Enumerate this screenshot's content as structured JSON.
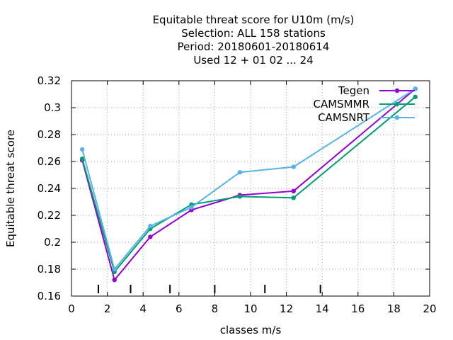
{
  "chart_data": {
    "type": "line",
    "title_lines": [
      "Equitable threat score  for U10m (m/s)",
      "Selection: ALL    158 stations",
      "Period: 20180601-20180614",
      "Used  12 + 01 02 ... 24"
    ],
    "xlabel": "classes m/s",
    "ylabel": "Equitable threat score",
    "xlim": [
      0,
      20
    ],
    "ylim": [
      0.16,
      0.32
    ],
    "x_ticks": [
      0,
      2,
      4,
      6,
      8,
      10,
      12,
      14,
      16,
      18,
      20
    ],
    "y_ticks": [
      0.16,
      0.18,
      0.2,
      0.22,
      0.24,
      0.26,
      0.28,
      0.3,
      0.32
    ],
    "y_tick_labels": [
      "0.16",
      "0.18",
      "0.2",
      "0.22",
      "0.24",
      "0.26",
      "0.28",
      "0.3",
      "0.32"
    ],
    "class_boundary_marks": [
      1.5,
      3.3,
      5.5,
      8.0,
      10.8,
      13.9
    ],
    "grid": true,
    "legend_position": "top-right",
    "series": [
      {
        "name": "Tegen",
        "color": "#9400d3",
        "x": [
          0.6,
          2.4,
          4.4,
          6.7,
          9.4,
          12.4,
          19.2
        ],
        "y": [
          0.261,
          0.172,
          0.204,
          0.224,
          0.235,
          0.238,
          0.314
        ]
      },
      {
        "name": "CAMSMMR",
        "color": "#009e73",
        "x": [
          0.6,
          2.4,
          4.4,
          6.7,
          9.4,
          12.4,
          19.2
        ],
        "y": [
          0.262,
          0.178,
          0.21,
          0.228,
          0.234,
          0.233,
          0.308
        ]
      },
      {
        "name": "CAMSNRT",
        "color": "#56b4e9",
        "x": [
          0.6,
          2.4,
          4.4,
          6.7,
          9.4,
          12.4,
          19.2
        ],
        "y": [
          0.269,
          0.18,
          0.212,
          0.226,
          0.252,
          0.256,
          0.314
        ]
      }
    ]
  }
}
